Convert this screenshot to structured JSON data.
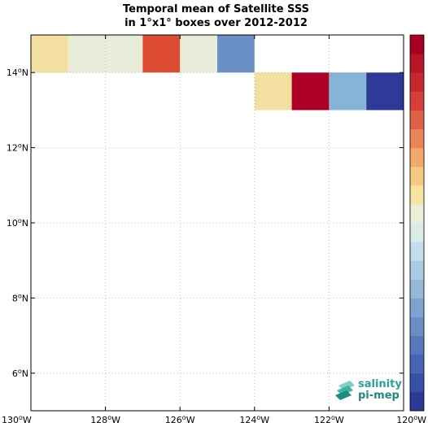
{
  "title": {
    "line1": "Temporal mean of Satellite SSS",
    "line2": "in 1°x1° boxes over 2012-2012"
  },
  "chart_data": {
    "type": "heatmap",
    "xlim": [
      -130,
      -120
    ],
    "ylim": [
      5,
      15
    ],
    "grid": true,
    "x_ticks": [
      {
        "value": -130,
        "deg": "130",
        "hem": "W"
      },
      {
        "value": -128,
        "deg": "128",
        "hem": "W"
      },
      {
        "value": -126,
        "deg": "126",
        "hem": "W"
      },
      {
        "value": -124,
        "deg": "124",
        "hem": "W"
      },
      {
        "value": -122,
        "deg": "122",
        "hem": "W"
      },
      {
        "value": -120,
        "deg": "120",
        "hem": "W"
      }
    ],
    "y_ticks": [
      {
        "value": 6,
        "deg": "6",
        "hem": "N"
      },
      {
        "value": 8,
        "deg": "8",
        "hem": "N"
      },
      {
        "value": 10,
        "deg": "10",
        "hem": "N"
      },
      {
        "value": 12,
        "deg": "12",
        "hem": "N"
      },
      {
        "value": 14,
        "deg": "14",
        "hem": "N"
      }
    ],
    "colorbar": {
      "orientation": "vertical",
      "levels": 20,
      "colors": [
        "#2b3a96",
        "#3550a8",
        "#4565b4",
        "#5679bd",
        "#6a8ec6",
        "#7fa3cf",
        "#95b7d8",
        "#abcbe2",
        "#c3dde9",
        "#dbece8",
        "#eaf0d8",
        "#f6e4a4",
        "#f6c983",
        "#f3a86c",
        "#eb8457",
        "#e06047",
        "#d43f39",
        "#c8272f",
        "#b81628",
        "#a70024"
      ]
    },
    "cells": [
      {
        "lon": -130,
        "lat": 14,
        "color": "#f3e0a0"
      },
      {
        "lon": -129,
        "lat": 14,
        "color": "#e8ecd8"
      },
      {
        "lon": -128,
        "lat": 14,
        "color": "#e8ecd8"
      },
      {
        "lon": -127,
        "lat": 14,
        "color": "#dc4b32"
      },
      {
        "lon": -126,
        "lat": 14,
        "color": "#e8ecd8"
      },
      {
        "lon": -125,
        "lat": 14,
        "color": "#6a90c6"
      },
      {
        "lon": -124,
        "lat": 13,
        "color": "#f3e0a0"
      },
      {
        "lon": -123,
        "lat": 13,
        "color": "#ad0026"
      },
      {
        "lon": -122,
        "lat": 13,
        "color": "#85b4d6"
      },
      {
        "lon": -121,
        "lat": 13,
        "color": "#2d3a98"
      }
    ]
  },
  "logo": {
    "line1": "salinity",
    "line2": "pi-mep"
  }
}
